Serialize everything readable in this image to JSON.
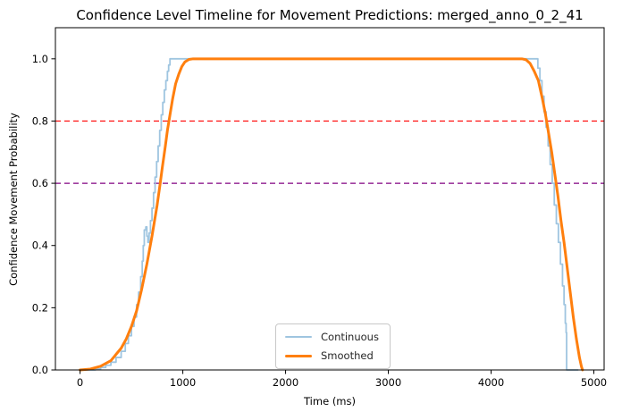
{
  "title": "Confidence Level Timeline for Movement Predictions: merged_anno_0_2_41",
  "chart_data": {
    "type": "line",
    "title": "Confidence Level Timeline for Movement Predictions: merged_anno_0_2_41",
    "xlabel": "Time (ms)",
    "ylabel": "Confidence Movement Probability",
    "xlim": [
      -240,
      5100
    ],
    "ylim": [
      0,
      1.1
    ],
    "grid": false,
    "legend_position": "lower center",
    "x_ticks": [
      0,
      1000,
      2000,
      3000,
      4000,
      5000
    ],
    "x_tick_labels": [
      "0",
      "1000",
      "2000",
      "3000",
      "4000",
      "5000"
    ],
    "y_ticks": [
      0.0,
      0.2,
      0.4,
      0.6,
      0.8,
      1.0
    ],
    "y_tick_labels": [
      "0.0",
      "0.2",
      "0.4",
      "0.6",
      "0.8",
      "1.0"
    ],
    "thresholds": [
      {
        "name": "threshold-0-8",
        "y": 0.8,
        "color": "#ff0000",
        "style": "dashed"
      },
      {
        "name": "threshold-0-6",
        "y": 0.6,
        "color": "#800080",
        "style": "dashed"
      }
    ],
    "series": [
      {
        "name": "Continuous",
        "color": "#9fc5e0",
        "width": 1.8,
        "interp": "step",
        "points": [
          [
            0,
            0
          ],
          [
            150,
            0.003
          ],
          [
            200,
            0.008
          ],
          [
            250,
            0.015
          ],
          [
            300,
            0.025
          ],
          [
            350,
            0.04
          ],
          [
            400,
            0.06
          ],
          [
            440,
            0.085
          ],
          [
            470,
            0.11
          ],
          [
            500,
            0.14
          ],
          [
            525,
            0.17
          ],
          [
            550,
            0.21
          ],
          [
            570,
            0.25
          ],
          [
            590,
            0.3
          ],
          [
            605,
            0.35
          ],
          [
            615,
            0.4
          ],
          [
            625,
            0.45
          ],
          [
            640,
            0.46
          ],
          [
            650,
            0.43
          ],
          [
            660,
            0.41
          ],
          [
            672,
            0.44
          ],
          [
            685,
            0.48
          ],
          [
            700,
            0.52
          ],
          [
            715,
            0.57
          ],
          [
            730,
            0.62
          ],
          [
            745,
            0.67
          ],
          [
            760,
            0.72
          ],
          [
            775,
            0.77
          ],
          [
            790,
            0.82
          ],
          [
            805,
            0.86
          ],
          [
            820,
            0.9
          ],
          [
            835,
            0.93
          ],
          [
            850,
            0.96
          ],
          [
            862,
            0.98
          ],
          [
            875,
            1.0
          ],
          [
            4430,
            1.0
          ],
          [
            4455,
            0.97
          ],
          [
            4475,
            0.93
          ],
          [
            4495,
            0.88
          ],
          [
            4515,
            0.83
          ],
          [
            4535,
            0.78
          ],
          [
            4555,
            0.72
          ],
          [
            4575,
            0.66
          ],
          [
            4595,
            0.6
          ],
          [
            4615,
            0.53
          ],
          [
            4635,
            0.47
          ],
          [
            4655,
            0.41
          ],
          [
            4675,
            0.34
          ],
          [
            4695,
            0.27
          ],
          [
            4710,
            0.21
          ],
          [
            4722,
            0.15
          ],
          [
            4730,
            0.12
          ],
          [
            4735,
            0.0
          ],
          [
            4845,
            0.0
          ]
        ]
      },
      {
        "name": "Smoothed",
        "color": "#ff7f0e",
        "width": 3,
        "interp": "linear",
        "points": [
          [
            0,
            0
          ],
          [
            100,
            0.003
          ],
          [
            200,
            0.012
          ],
          [
            300,
            0.03
          ],
          [
            400,
            0.07
          ],
          [
            450,
            0.1
          ],
          [
            500,
            0.14
          ],
          [
            550,
            0.19
          ],
          [
            600,
            0.26
          ],
          [
            650,
            0.34
          ],
          [
            700,
            0.43
          ],
          [
            750,
            0.53
          ],
          [
            780,
            0.6
          ],
          [
            800,
            0.65
          ],
          [
            830,
            0.72
          ],
          [
            850,
            0.77
          ],
          [
            870,
            0.81
          ],
          [
            900,
            0.87
          ],
          [
            930,
            0.92
          ],
          [
            960,
            0.95
          ],
          [
            990,
            0.975
          ],
          [
            1020,
            0.99
          ],
          [
            1060,
            0.998
          ],
          [
            1100,
            1.0
          ],
          [
            4300,
            1.0
          ],
          [
            4340,
            0.997
          ],
          [
            4380,
            0.985
          ],
          [
            4420,
            0.96
          ],
          [
            4460,
            0.93
          ],
          [
            4500,
            0.87
          ],
          [
            4530,
            0.82
          ],
          [
            4560,
            0.76
          ],
          [
            4590,
            0.7
          ],
          [
            4620,
            0.63
          ],
          [
            4650,
            0.56
          ],
          [
            4680,
            0.48
          ],
          [
            4710,
            0.41
          ],
          [
            4740,
            0.33
          ],
          [
            4770,
            0.25
          ],
          [
            4800,
            0.17
          ],
          [
            4830,
            0.1
          ],
          [
            4860,
            0.04
          ],
          [
            4880,
            0.01
          ],
          [
            4890,
            0.0
          ]
        ]
      }
    ]
  },
  "legend": {
    "items": [
      {
        "label": "Continuous"
      },
      {
        "label": "Smoothed"
      }
    ]
  }
}
